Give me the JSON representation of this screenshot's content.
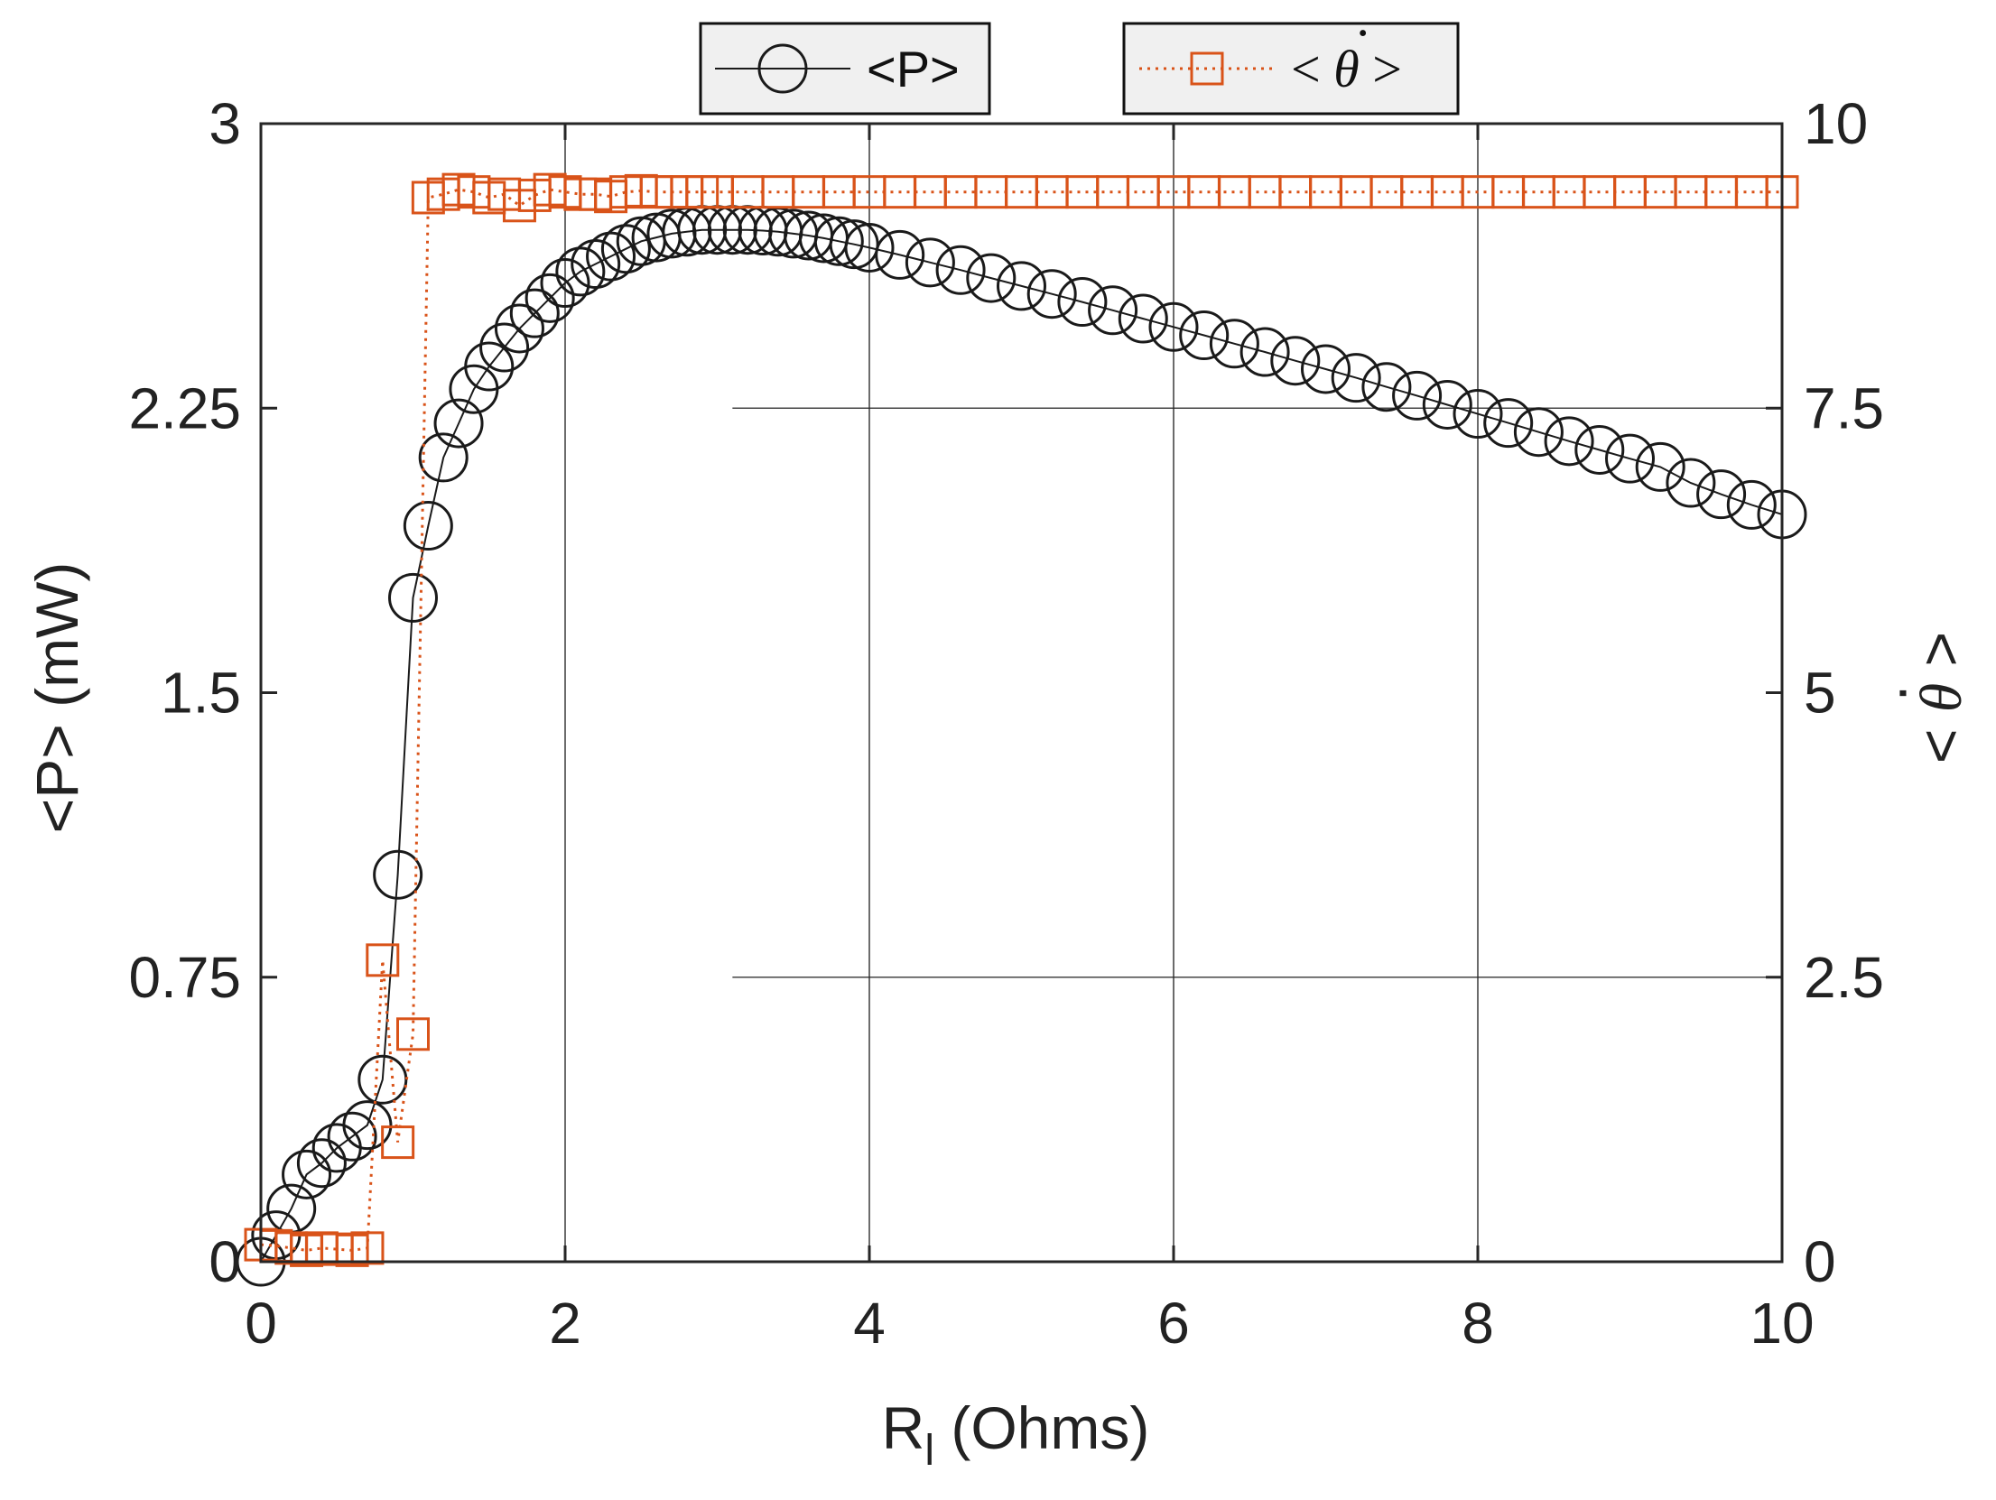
{
  "chart_data": {
    "type": "line",
    "xlabel_main": "R",
    "xlabel_sub": "l",
    "xlabel_unit": " (Ohms)",
    "ylabel_left": "<P> (mW)",
    "ylabel_right_left": "<",
    "ylabel_right_symbol": "θ",
    "ylabel_right_right": ">",
    "xlim": [
      0,
      10
    ],
    "ylim_left": [
      0,
      3
    ],
    "ylim_right": [
      0,
      10
    ],
    "x_ticks": [
      "0",
      "2",
      "4",
      "6",
      "8",
      "10"
    ],
    "y_left_ticks": [
      "0",
      "0.75",
      "1.5",
      "2.25",
      "3"
    ],
    "y_right_ticks": [
      "0",
      "2.5",
      "5",
      "7.5",
      "10"
    ],
    "grid": true,
    "legend_placement": "above plot, horizontal",
    "series": [
      {
        "name": "<P>",
        "axis": "left",
        "color": "#1a1a1a",
        "marker": "circle",
        "line": "solid",
        "points": [
          [
            0.0,
            0.0
          ],
          [
            0.1,
            0.07
          ],
          [
            0.2,
            0.14
          ],
          [
            0.3,
            0.23
          ],
          [
            0.4,
            0.26
          ],
          [
            0.5,
            0.3
          ],
          [
            0.6,
            0.33
          ],
          [
            0.7,
            0.36
          ],
          [
            0.8,
            0.48
          ],
          [
            0.9,
            1.02
          ],
          [
            1.0,
            1.75
          ],
          [
            1.1,
            1.94
          ],
          [
            1.2,
            2.12
          ],
          [
            1.3,
            2.21
          ],
          [
            1.4,
            2.3
          ],
          [
            1.5,
            2.36
          ],
          [
            1.6,
            2.41
          ],
          [
            1.7,
            2.46
          ],
          [
            1.8,
            2.5
          ],
          [
            1.9,
            2.54
          ],
          [
            2.0,
            2.58
          ],
          [
            2.1,
            2.61
          ],
          [
            2.2,
            2.63
          ],
          [
            2.3,
            2.65
          ],
          [
            2.4,
            2.67
          ],
          [
            2.5,
            2.69
          ],
          [
            2.6,
            2.7
          ],
          [
            2.7,
            2.71
          ],
          [
            2.8,
            2.715
          ],
          [
            2.9,
            2.72
          ],
          [
            3.0,
            2.72
          ],
          [
            3.1,
            2.72
          ],
          [
            3.2,
            2.72
          ],
          [
            3.3,
            2.718
          ],
          [
            3.4,
            2.715
          ],
          [
            3.5,
            2.71
          ],
          [
            3.6,
            2.705
          ],
          [
            3.7,
            2.698
          ],
          [
            3.8,
            2.69
          ],
          [
            3.9,
            2.682
          ],
          [
            4.0,
            2.673
          ],
          [
            4.2,
            2.654
          ],
          [
            4.4,
            2.634
          ],
          [
            4.6,
            2.614
          ],
          [
            4.8,
            2.593
          ],
          [
            5.0,
            2.572
          ],
          [
            5.2,
            2.551
          ],
          [
            5.4,
            2.53
          ],
          [
            5.6,
            2.508
          ],
          [
            5.8,
            2.486
          ],
          [
            6.0,
            2.464
          ],
          [
            6.2,
            2.442
          ],
          [
            6.4,
            2.42
          ],
          [
            6.6,
            2.398
          ],
          [
            6.8,
            2.375
          ],
          [
            7.0,
            2.353
          ],
          [
            7.2,
            2.33
          ],
          [
            7.4,
            2.306
          ],
          [
            7.6,
            2.283
          ],
          [
            7.8,
            2.259
          ],
          [
            8.0,
            2.235
          ],
          [
            8.2,
            2.211
          ],
          [
            8.4,
            2.187
          ],
          [
            8.6,
            2.163
          ],
          [
            8.8,
            2.14
          ],
          [
            9.0,
            2.117
          ],
          [
            9.2,
            2.095
          ],
          [
            9.4,
            2.053
          ],
          [
            9.6,
            2.023
          ],
          [
            9.8,
            1.995
          ],
          [
            10.0,
            1.97
          ]
        ]
      },
      {
        "name": "< θ >",
        "axis": "right",
        "color": "#d95319",
        "marker": "square",
        "line": "dotted",
        "points": [
          [
            0.0,
            0.15
          ],
          [
            0.1,
            0.14
          ],
          [
            0.2,
            0.12
          ],
          [
            0.3,
            0.1
          ],
          [
            0.4,
            0.12
          ],
          [
            0.5,
            0.11
          ],
          [
            0.6,
            0.1
          ],
          [
            0.7,
            0.12
          ],
          [
            0.8,
            2.65
          ],
          [
            0.9,
            1.05
          ],
          [
            1.0,
            2.0
          ],
          [
            1.1,
            9.35
          ],
          [
            1.2,
            9.38
          ],
          [
            1.3,
            9.42
          ],
          [
            1.4,
            9.4
          ],
          [
            1.5,
            9.35
          ],
          [
            1.6,
            9.38
          ],
          [
            1.7,
            9.28
          ],
          [
            1.8,
            9.37
          ],
          [
            1.9,
            9.42
          ],
          [
            2.0,
            9.4
          ],
          [
            2.1,
            9.38
          ],
          [
            2.2,
            9.38
          ],
          [
            2.3,
            9.36
          ],
          [
            2.4,
            9.4
          ],
          [
            2.5,
            9.41
          ],
          [
            2.6,
            9.4
          ],
          [
            2.7,
            9.4
          ],
          [
            2.8,
            9.4
          ],
          [
            2.9,
            9.4
          ],
          [
            3.0,
            9.4
          ],
          [
            3.2,
            9.4
          ],
          [
            3.4,
            9.4
          ],
          [
            3.6,
            9.4
          ],
          [
            3.8,
            9.4
          ],
          [
            4.0,
            9.4
          ],
          [
            4.2,
            9.4
          ],
          [
            4.4,
            9.4
          ],
          [
            4.6,
            9.4
          ],
          [
            4.8,
            9.4
          ],
          [
            5.0,
            9.4
          ],
          [
            5.2,
            9.4
          ],
          [
            5.4,
            9.4
          ],
          [
            5.6,
            9.4
          ],
          [
            5.8,
            9.4
          ],
          [
            6.0,
            9.4
          ],
          [
            6.2,
            9.4
          ],
          [
            6.4,
            9.4
          ],
          [
            6.6,
            9.4
          ],
          [
            6.8,
            9.4
          ],
          [
            7.0,
            9.4
          ],
          [
            7.2,
            9.4
          ],
          [
            7.4,
            9.4
          ],
          [
            7.6,
            9.4
          ],
          [
            7.8,
            9.4
          ],
          [
            8.0,
            9.4
          ],
          [
            8.2,
            9.4
          ],
          [
            8.4,
            9.4
          ],
          [
            8.6,
            9.4
          ],
          [
            8.8,
            9.4
          ],
          [
            9.0,
            9.4
          ],
          [
            9.2,
            9.4
          ],
          [
            9.4,
            9.4
          ],
          [
            9.6,
            9.4
          ],
          [
            9.8,
            9.4
          ],
          [
            10.0,
            9.4
          ]
        ]
      }
    ],
    "legend": [
      {
        "label": "<P>",
        "series": 0
      },
      {
        "label_left": "<",
        "label_symbol": "θ",
        "label_right": ">",
        "series": 1
      }
    ]
  }
}
